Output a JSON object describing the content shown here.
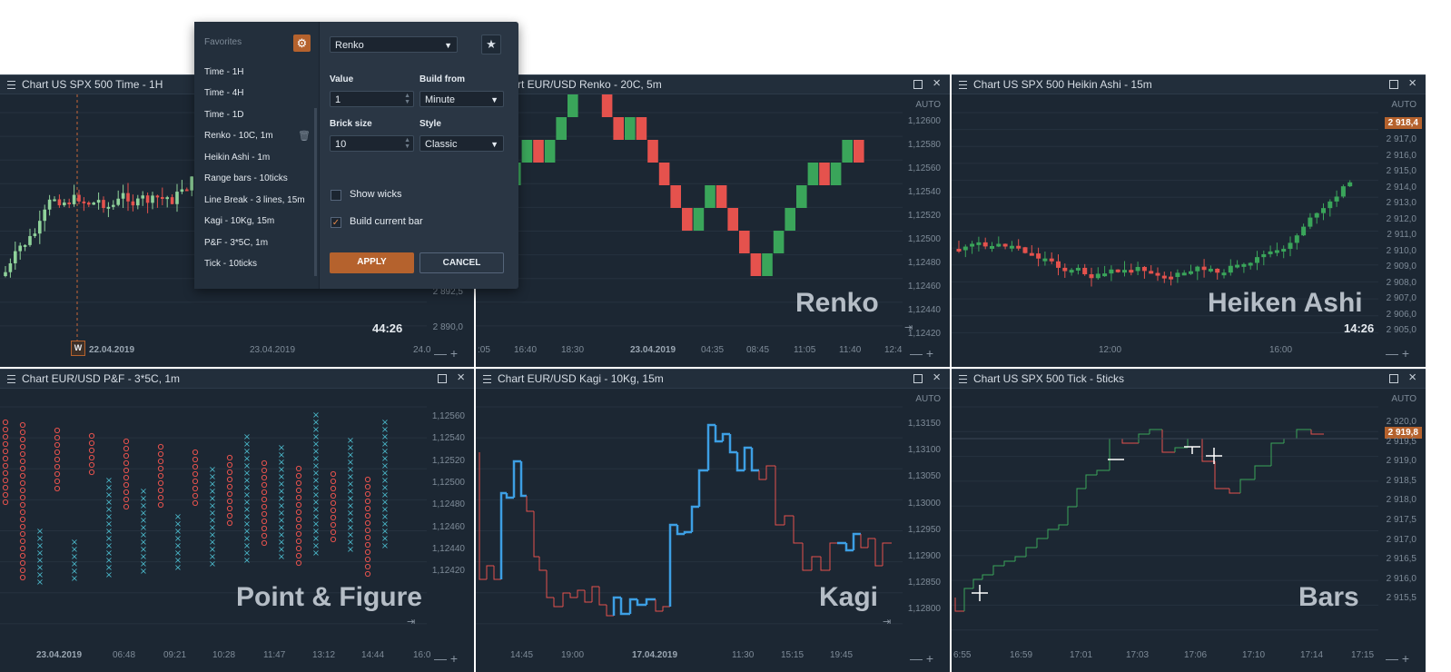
{
  "colors": {
    "up": "#3aa55a",
    "down": "#e5524d",
    "kagi_up": "#3d9fe4",
    "pf_x": "#4bb7c9",
    "pf_o": "#e5524d",
    "accent": "#b5622d",
    "panel": "#1c2733"
  },
  "panels": [
    {
      "title": "Chart US SPX 500 Time - 1H",
      "y_labels": [
        "2 892,5",
        "2 890,0"
      ],
      "x_labels": [
        "22.04.2019",
        "23.04.2019",
        "24.0"
      ],
      "w_badge": "W",
      "timer": "44:26",
      "controls": "— +"
    },
    {
      "title": "Chart EUR/USD Renko - 20C, 5m",
      "auto": "AUTO",
      "y_labels": [
        "1,12600",
        "1,12580",
        "1,12560",
        "1,12540",
        "1,12520",
        "1,12500",
        "1,12480",
        "1,12460",
        "1,12440",
        "1,12420"
      ],
      "x_labels": [
        ":05",
        "16:40",
        "18:30",
        "23.04.2019",
        "04:35",
        "08:45",
        "11:05",
        "11:40",
        "12:4"
      ],
      "big_label": "Renko",
      "controls": "— +"
    },
    {
      "title": "Chart US SPX 500 Heikin Ashi - 15m",
      "auto": "AUTO",
      "price_tag": "2 918,4",
      "y_labels": [
        "2 917,0",
        "2 916,0",
        "2 915,0",
        "2 914,0",
        "2 913,0",
        "2 912,0",
        "2 911,0",
        "2 910,0",
        "2 909,0",
        "2 908,0",
        "2 907,0",
        "2 906,0",
        "2 905,0"
      ],
      "x_labels": [
        "12:00",
        "16:00"
      ],
      "big_label": "Heiken Ashi",
      "timer": "14:26",
      "controls": "— +"
    },
    {
      "title": "Chart EUR/USD P&F - 3*5C, 1m",
      "y_labels": [
        "1,12560",
        "1,12540",
        "1,12520",
        "1,12500",
        "1,12480",
        "1,12460",
        "1,12440",
        "1,12420"
      ],
      "x_labels": [
        "23.04.2019",
        "06:48",
        "09:21",
        "10:28",
        "11:47",
        "13:12",
        "14:44",
        "16:0"
      ],
      "big_label": "Point & Figure",
      "controls": "— +"
    },
    {
      "title": "Chart EUR/USD Kagi - 10Kg, 15m",
      "auto": "AUTO",
      "y_labels": [
        "1,13150",
        "1,13100",
        "1,13050",
        "1,13000",
        "1,12950",
        "1,12900",
        "1,12850",
        "1,12800"
      ],
      "x_labels": [
        "14:45",
        "19:00",
        "17.04.2019",
        "11:30",
        "15:15",
        "19:45"
      ],
      "big_label": "Kagi",
      "controls": "— +"
    },
    {
      "title": "Chart US SPX 500 Tick - 5ticks",
      "auto": "AUTO",
      "price_tag": "2 919,8",
      "y_labels": [
        "2 920,0",
        "2 919,5",
        "2 919,0",
        "2 918,5",
        "2 918,0",
        "2 917,5",
        "2 917,0",
        "2 916,5",
        "2 916,0",
        "2 915,5"
      ],
      "x_labels": [
        "6:55",
        "16:59",
        "17:01",
        "17:03",
        "17:06",
        "17:10",
        "17:14",
        "17:15"
      ],
      "big_label": "Bars",
      "controls": "— +"
    }
  ],
  "popup": {
    "favorites_label": "Favorites",
    "gear": "⚙",
    "favorites": [
      "Time - 1H",
      "Time - 4H",
      "Time - 1D",
      "Renko - 10C, 1m",
      "Heikin Ashi - 1m",
      "Range bars - 10ticks",
      "Line Break - 3 lines, 15m",
      "Kagi - 10Kg, 15m",
      "P&F - 3*5C, 1m",
      "Tick - 10ticks"
    ],
    "chart_type": "Renko",
    "value_label": "Value",
    "value": "1",
    "build_from_label": "Build from",
    "build_from": "Minute",
    "brick_size_label": "Brick size",
    "brick_size": "10",
    "style_label": "Style",
    "style": "Classic",
    "show_wicks": "Show wicks",
    "show_wicks_checked": false,
    "build_current_bar": "Build current bar",
    "build_current_bar_checked": true,
    "apply": "APPLY",
    "cancel": "CANCEL"
  }
}
